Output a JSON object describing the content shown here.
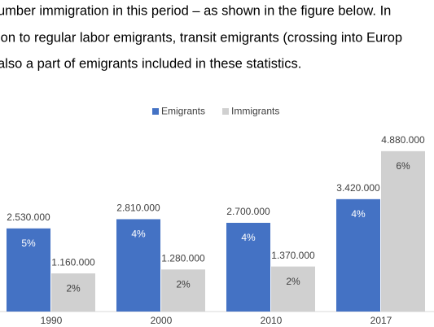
{
  "text_lines": [
    "umber immigration in this period – as shown in the figure below. In",
    "ion to regular labor emigrants, transit emigrants (crossing into Europ",
    "also a part of emigrants included in these statistics."
  ],
  "chart_data": {
    "type": "bar",
    "categories": [
      "1990",
      "2000",
      "2010",
      "2017"
    ],
    "series": [
      {
        "name": "Emigrants",
        "color": "#4472c4",
        "values": [
          2530000,
          2810000,
          2700000,
          3420000
        ],
        "value_labels": [
          "2.530.000",
          "2.810.000",
          "2.700.000",
          "3.420.000"
        ],
        "percent_labels": [
          "5%",
          "4%",
          "4%",
          "4%"
        ]
      },
      {
        "name": "Immigrants",
        "color": "#d0d0d0",
        "values": [
          1160000,
          1280000,
          1370000,
          4880000
        ],
        "value_labels": [
          "1.160.000",
          "1.280.000",
          "1.370.000",
          "4.880.000"
        ],
        "percent_labels": [
          "2%",
          "2%",
          "2%",
          "6%"
        ]
      }
    ],
    "ylim": [
      0,
      5000000
    ],
    "legend": "top"
  }
}
